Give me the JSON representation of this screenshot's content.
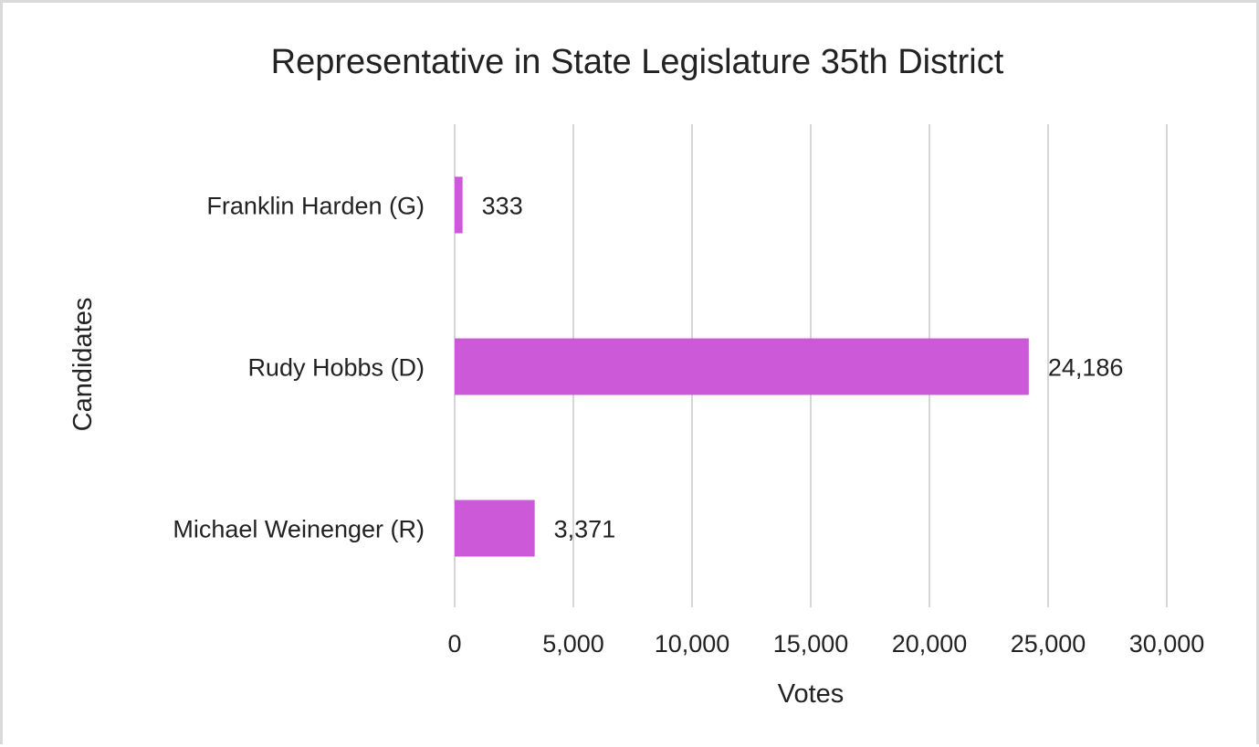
{
  "chart_data": {
    "type": "bar",
    "orientation": "horizontal",
    "title": "Representative in State Legislature 35th District",
    "xlabel": "Votes",
    "ylabel": "Candidates",
    "categories": [
      "Franklin Harden (G)",
      "Rudy Hobbs (D)",
      "Michael Weinenger (R)"
    ],
    "values": [
      333,
      24186,
      3371
    ],
    "data_labels": [
      "333",
      "24,186",
      "3,371"
    ],
    "xlim": [
      0,
      30000
    ],
    "x_ticks": [
      0,
      5000,
      10000,
      15000,
      20000,
      25000,
      30000
    ],
    "x_tick_labels": [
      "0",
      "5,000",
      "10,000",
      "15,000",
      "20,000",
      "25,000",
      "30,000"
    ],
    "grid": true,
    "legend": "none",
    "bar_color": "#cc5ad8",
    "grid_color": "#d6d6d6"
  }
}
